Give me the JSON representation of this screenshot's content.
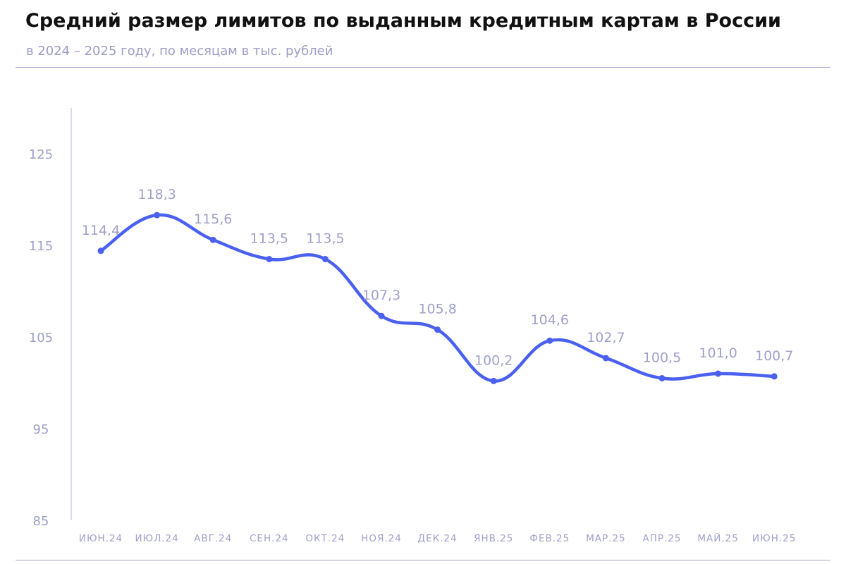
{
  "chart_data": {
    "type": "line",
    "title": "Средний размер лимитов по выданным кредитным картам в России",
    "subtitle": "в 2024 – 2025 году, по месяцам в тыс. рублей",
    "xlabel": "",
    "ylabel": "",
    "categories": [
      "ИЮН.24",
      "ИЮЛ.24",
      "АВГ.24",
      "СЕН.24",
      "ОКТ.24",
      "НОЯ.24",
      "ДЕК.24",
      "ЯНВ.25",
      "ФЕВ.25",
      "МАР.25",
      "АПР.25",
      "МАЙ.25",
      "ИЮН.25"
    ],
    "series": [
      {
        "values": [
          114.4,
          118.3,
          115.6,
          113.5,
          113.5,
          107.3,
          105.8,
          100.2,
          104.6,
          102.7,
          100.5,
          101.0,
          100.7
        ],
        "labels": [
          "114,4",
          "118,3",
          "115,6",
          "113,5",
          "113,5",
          "107,3",
          "105,8",
          "100,2",
          "104,6",
          "102,7",
          "100,5",
          "101,0",
          "100,7"
        ],
        "color": "#4a60f0"
      }
    ],
    "ylim": [
      85,
      130
    ],
    "yticks": [
      85,
      95,
      105,
      115,
      125
    ],
    "grid": false,
    "legend": "none",
    "colors": {
      "line": "#4a60f0",
      "labels": "#a0a0cc",
      "axis": "#b4b4dc",
      "title": "#111111",
      "subtitle": "#9c9cc8"
    }
  }
}
